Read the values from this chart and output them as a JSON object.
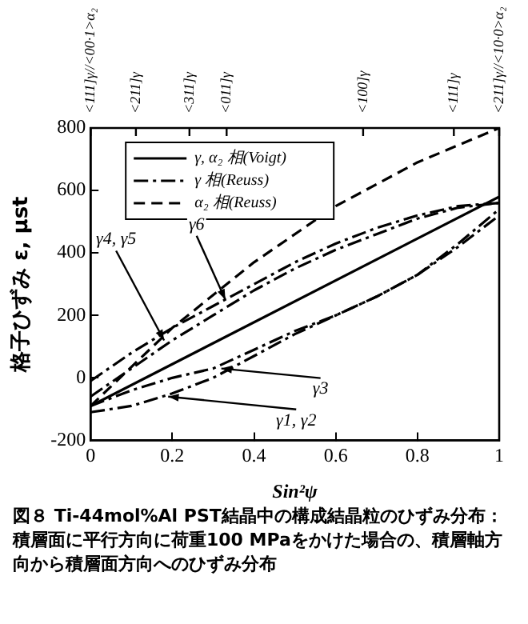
{
  "chart_data": {
    "type": "line",
    "xlabel": "Sin²ψ",
    "ylabel": "格子ひずみ ε, μst",
    "xlim": [
      0,
      1
    ],
    "xticks": [
      0,
      0.2,
      0.4,
      0.6,
      0.8,
      1
    ],
    "ylim": [
      -200,
      800
    ],
    "yticks": [
      -200,
      0,
      200,
      400,
      600,
      800
    ],
    "legend": "top left",
    "grid": false,
    "marker": "none",
    "series": [
      {
        "name": "γ, α₂ 相(Voigt)",
        "color": "#000000",
        "line_style": "solid",
        "x": [
          0,
          1
        ],
        "values": [
          -90,
          580
        ]
      },
      {
        "name": "γ 相(Reuss)",
        "color": "#000000",
        "line_style": "dashdot",
        "x": [
          0,
          0.1,
          0.2,
          0.3,
          0.4,
          0.5,
          0.6,
          0.7,
          0.8,
          0.9,
          1
        ],
        "values": [
          -10,
          80,
          160,
          230,
          300,
          370,
          430,
          480,
          520,
          550,
          560
        ]
      },
      {
        "name": "α₂ 相(Reuss)",
        "color": "#000000",
        "line_style": "dashed",
        "x": [
          0,
          0.2,
          0.4,
          0.6,
          0.8,
          1
        ],
        "values": [
          -90,
          160,
          370,
          550,
          690,
          800
        ]
      },
      {
        "color": "#000000",
        "line_style": "dashdot",
        "x": [
          0,
          0.1,
          0.2,
          0.3,
          0.4,
          0.5,
          0.6,
          0.7,
          0.8,
          0.9,
          1
        ],
        "values": [
          -60,
          30,
          120,
          200,
          280,
          350,
          410,
          460,
          510,
          545,
          560
        ]
      },
      {
        "color": "#000000",
        "line_style": "dashdot",
        "x": [
          0,
          0.1,
          0.2,
          0.3,
          0.4,
          0.5,
          0.6,
          0.7,
          0.8,
          0.9,
          1
        ],
        "values": [
          -90,
          -40,
          0,
          30,
          90,
          150,
          200,
          260,
          330,
          420,
          520
        ]
      },
      {
        "color": "#000000",
        "line_style": "dashdot",
        "x": [
          0,
          0.1,
          0.2,
          0.3,
          0.4,
          0.5,
          0.6,
          0.7,
          0.8,
          0.9,
          1
        ],
        "values": [
          -110,
          -90,
          -50,
          0,
          70,
          140,
          200,
          260,
          330,
          430,
          540
        ]
      }
    ],
    "annotations": [
      {
        "text": "γ6",
        "x": 0.33,
        "y": 250
      },
      {
        "text": "γ4, γ5",
        "x": 0.18,
        "y": 120
      },
      {
        "text": "γ3",
        "x": 0.32,
        "y": 30
      },
      {
        "text": "γ1, γ2",
        "x": 0.19,
        "y": -60
      },
      "<111]γ//<00·1>α₂",
      "<211]γ",
      "<311]γ",
      "<011]γ",
      "<100]γ",
      "<111]γ",
      "<211]γ//<10·0>α₂",
      "図８ Ti-44mol%Al PST結晶中の構成結晶粒のひずみ分布：積層面に平行方向に荷重100 MPaをかけた場合の、積層軸方向から積層面方向へのひずみ分布"
    ]
  }
}
